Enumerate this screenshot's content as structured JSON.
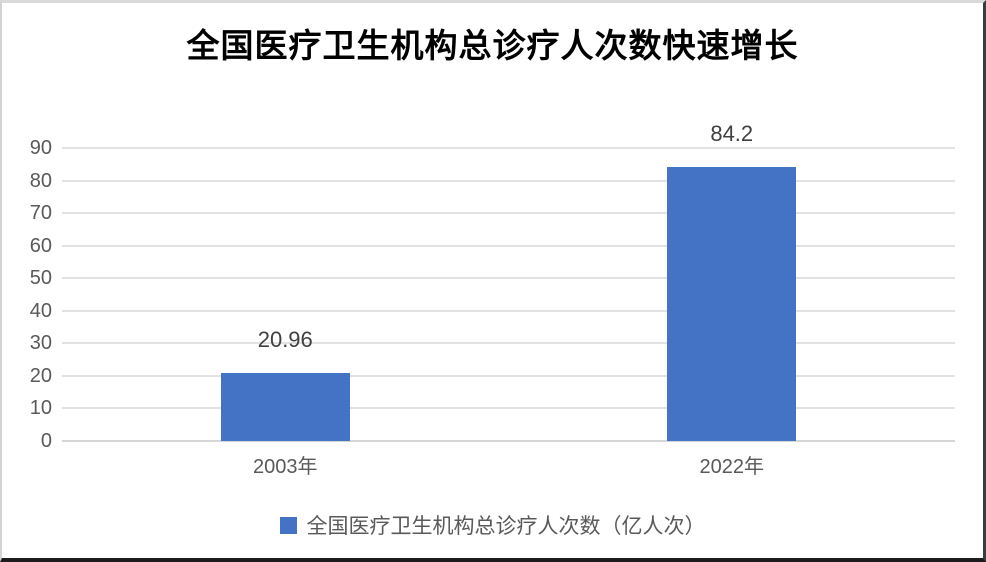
{
  "title": "全国医疗卫生机构总诊疗人次数快速增长",
  "legend": {
    "label": "全国医疗卫生机构总诊疗人次数（亿人次）",
    "swatch_color": "#4472C4"
  },
  "colors": {
    "bar": "#4472C4",
    "gridline": "#e2e2e2",
    "axis_line": "#d6d6d6",
    "tick_label": "#595959",
    "data_label": "#404040",
    "title": "#000000",
    "background": "#ffffff"
  },
  "chart_data": {
    "type": "bar",
    "title": "全国医疗卫生机构总诊疗人次数快速增长",
    "categories": [
      "2003年",
      "2022年"
    ],
    "values": [
      20.96,
      84.2
    ],
    "data_labels": [
      "20.96",
      "84.2"
    ],
    "series_name": "全国医疗卫生机构总诊疗人次数（亿人次）",
    "xlabel": "",
    "ylabel": "",
    "ylim": [
      0,
      90
    ],
    "yticks": [
      0,
      10,
      20,
      30,
      40,
      50,
      60,
      70,
      80,
      90
    ],
    "grid": true,
    "legend_position": "bottom"
  }
}
